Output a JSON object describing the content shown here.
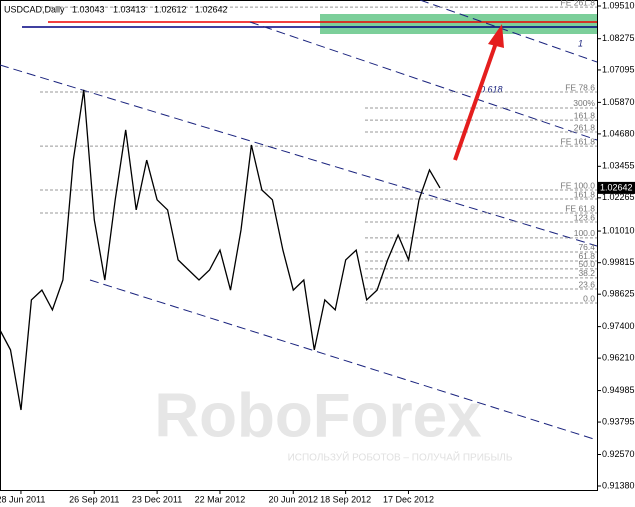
{
  "chart_data": {
    "type": "line",
    "symbol": "USDCAD,Daily",
    "ohlc": [
      1.03043,
      1.03413,
      1.02612,
      1.02642
    ],
    "color": "#000000",
    "values": [
      0.9727,
      0.9652,
      0.9425,
      0.9841,
      0.9878,
      0.9803,
      0.9916,
      1.0369,
      1.0634,
      1.0143,
      0.9916,
      1.0219,
      1.0483,
      1.0181,
      1.0369,
      1.0219,
      1.0181,
      0.9992,
      0.9954,
      0.9916,
      0.9954,
      1.0029,
      0.9878,
      1.0105,
      1.0426,
      1.0256,
      1.0219,
      1.0029,
      0.9878,
      0.9916,
      0.9652,
      0.9841,
      0.9803,
      0.9992,
      1.0029,
      0.9841,
      0.9878,
      0.9992,
      1.0086,
      0.9992,
      1.0219,
      1.0332,
      1.0264
    ],
    "xlim": [
      0,
      57
    ],
    "xticks": [
      {
        "value": 2,
        "label": "28 Jun 2011"
      },
      {
        "value": 9,
        "label": "26 Sep 2011"
      },
      {
        "value": 15,
        "label": "23 Dec 2011"
      },
      {
        "value": 21,
        "label": "22 Mar 2012"
      },
      {
        "value": 28,
        "label": "20 Jun 2012"
      },
      {
        "value": 33,
        "label": "18 Sep 2012"
      },
      {
        "value": 39,
        "label": "17 Dec 2012"
      }
    ],
    "ylim": [
      0.91229,
      1.09737
    ],
    "yticks": [
      {
        "value": 1.0951,
        "label": "1.09510"
      },
      1.08275,
      1.07095,
      {
        "value": 1.0587,
        "label": "1.05870"
      },
      {
        "value": 1.0468,
        "label": "1.04680"
      },
      1.03455,
      1.02265,
      {
        "value": 1.0101,
        "label": "1.01010"
      },
      0.99815,
      0.98625,
      {
        "value": 0.974,
        "label": "0.97400"
      },
      {
        "value": 0.9621,
        "label": "0.96210"
      },
      0.94985,
      0.93795,
      {
        "value": 0.9257,
        "label": "0.92570"
      },
      {
        "value": 0.9138,
        "label": "0.91380"
      }
    ],
    "fib_levels": [
      {
        "label": "FE 261.8",
        "value": 1.0947
      },
      {
        "label": "FE 78.6",
        "value": 1.0626
      },
      {
        "label": "300%",
        "value": 1.0566
      },
      {
        "label": "161.8",
        "value": 1.052
      },
      {
        "label": "261.8",
        "value": 1.0475
      },
      {
        "label": "FE 161.8",
        "value": 1.0422
      },
      {
        "label": "FE 100.0",
        "value": 1.0256
      },
      {
        "label": "161.8",
        "value": 1.0222
      },
      {
        "label": "FE 61.8",
        "value": 1.0169
      },
      {
        "label": "123.6",
        "value": 1.0135
      },
      {
        "label": "100.0",
        "value": 1.0075
      },
      {
        "label": "76.4",
        "value": 1.0022
      },
      {
        "label": "61.8",
        "value": 0.9988
      },
      {
        "label": "50.0",
        "value": 0.9958
      },
      {
        "label": "38.2",
        "value": 0.9924
      },
      {
        "label": "23.6",
        "value": 0.9882
      },
      {
        "label": "0.0",
        "value": 0.9829
      }
    ],
    "channel_labels": [
      "1",
      "0.618"
    ],
    "watermark": "RoboForex",
    "watermark_sub": "ИСПОЛЬЗУЙ РОБОТОВ – ПОЛУЧАЙ ПРИБЫЛЬ"
  }
}
